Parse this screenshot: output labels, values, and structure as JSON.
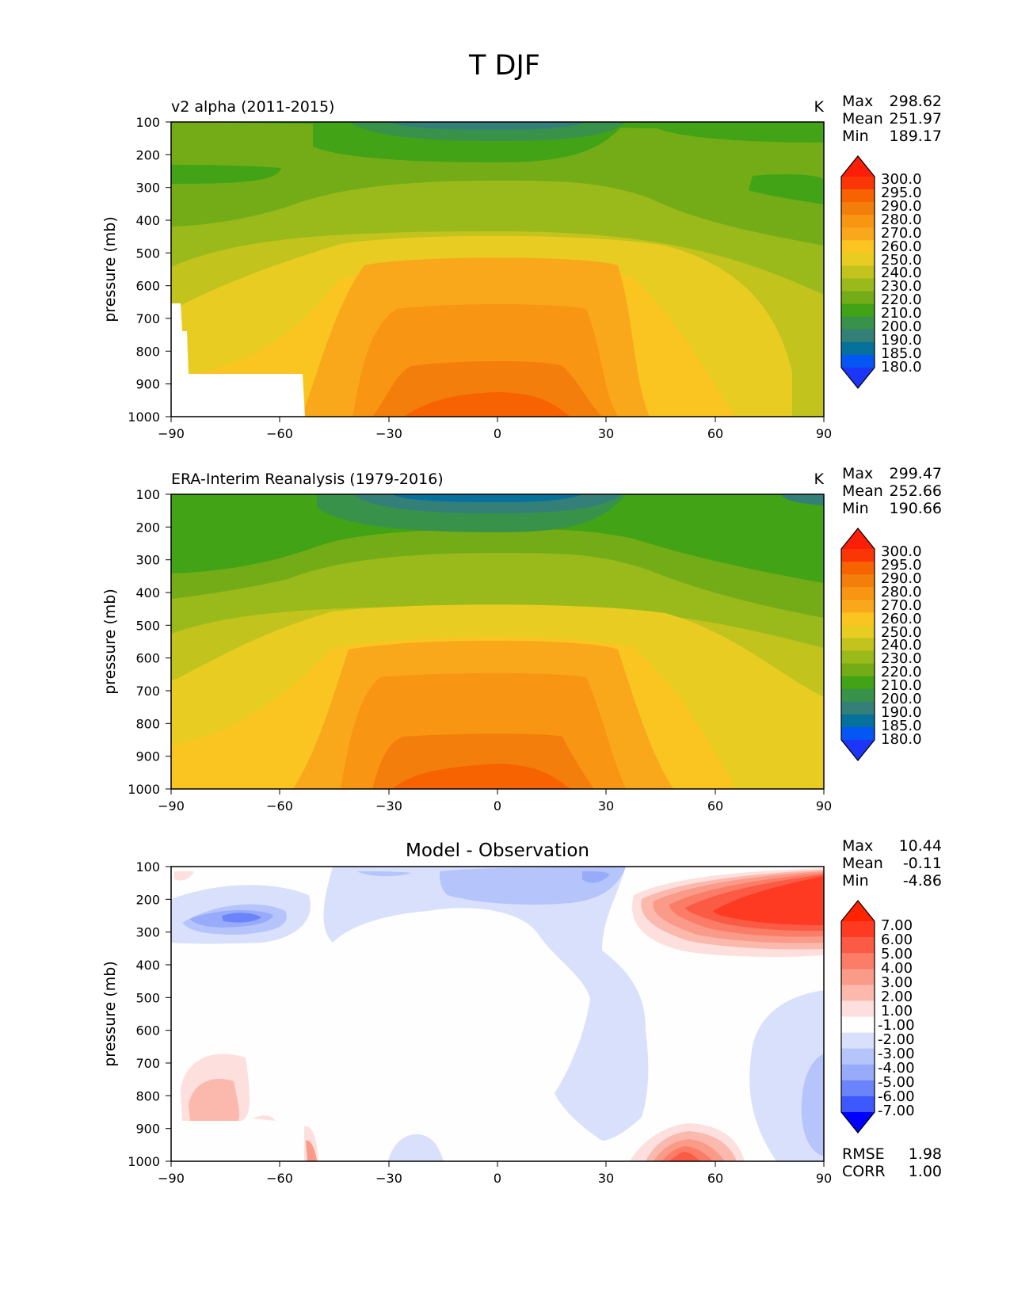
{
  "figure_title": "T DJF",
  "colors": {
    "abs": [
      "#1c35f7",
      "#0457f2",
      "#06719a",
      "#347f78",
      "#389249",
      "#42a316",
      "#74ac17",
      "#9ab91a",
      "#c2c31d",
      "#e8cc22",
      "#fac421",
      "#f9a71b",
      "#f89513",
      "#f47e0b",
      "#f86302",
      "#fa3506",
      "#fc1e06"
    ],
    "diff": [
      "#0000ff",
      "#3d59fd",
      "#6c84fb",
      "#97abfa",
      "#b5c4fa",
      "#d9e0fb",
      "#fefefe",
      "#fde0dd",
      "#fbb8ad",
      "#fa9a88",
      "#fb7c67",
      "#fb5b44",
      "#fe3b22",
      "#ff2300"
    ]
  },
  "chart_data": [
    {
      "type": "heatmap",
      "name": "model",
      "title": "v2 alpha (2011-2015)",
      "units": "K",
      "stats": {
        "max_label": "Max",
        "max": "298.62",
        "mean_label": "Mean",
        "mean": "251.97",
        "min_label": "Min",
        "min": "189.17"
      },
      "xlabel": "",
      "ylabel": "pressure (mb)",
      "xlim": [
        -90,
        90
      ],
      "ylim": [
        1000,
        100
      ],
      "xticks": [
        "−90",
        "−60",
        "−30",
        "0",
        "30",
        "60",
        "90"
      ],
      "yticks": [
        "100",
        "200",
        "300",
        "400",
        "500",
        "600",
        "700",
        "800",
        "900",
        "1000"
      ],
      "levels": [
        180,
        185,
        190,
        200,
        210,
        220,
        230,
        240,
        250,
        260,
        270,
        280,
        290,
        295,
        300
      ],
      "colorbar_labels": [
        "300.0",
        "295.0",
        "290.0",
        "280.0",
        "270.0",
        "260.0",
        "250.0",
        "240.0",
        "230.0",
        "220.0",
        "210.0",
        "200.0",
        "190.0",
        "185.0",
        "180.0"
      ],
      "masked_region": [
        {
          "lat": [
            -90,
            -53
          ],
          "p_min": 870
        },
        {
          "lat": [
            -90,
            -86
          ],
          "p_min": 650
        }
      ]
    },
    {
      "type": "heatmap",
      "name": "obs",
      "title": "ERA-Interim Reanalysis (1979-2016)",
      "units": "K",
      "stats": {
        "max_label": "Max",
        "max": "299.47",
        "mean_label": "Mean",
        "mean": "252.66",
        "min_label": "Min",
        "min": "190.66"
      },
      "xlabel": "",
      "ylabel": "pressure (mb)",
      "xlim": [
        -90,
        90
      ],
      "ylim": [
        1000,
        100
      ],
      "xticks": [
        "−90",
        "−60",
        "−30",
        "0",
        "30",
        "60",
        "90"
      ],
      "yticks": [
        "100",
        "200",
        "300",
        "400",
        "500",
        "600",
        "700",
        "800",
        "900",
        "1000"
      ],
      "levels": [
        180,
        185,
        190,
        200,
        210,
        220,
        230,
        240,
        250,
        260,
        270,
        280,
        290,
        295,
        300
      ],
      "colorbar_labels": [
        "300.0",
        "295.0",
        "290.0",
        "280.0",
        "270.0",
        "260.0",
        "250.0",
        "240.0",
        "230.0",
        "220.0",
        "210.0",
        "200.0",
        "190.0",
        "185.0",
        "180.0"
      ]
    },
    {
      "type": "heatmap",
      "name": "diff",
      "title": "Model - Observation",
      "units": "",
      "stats": {
        "max_label": "Max",
        "max": "10.44",
        "mean_label": "Mean",
        "mean": "-0.11",
        "min_label": "Min",
        "min": "-4.86"
      },
      "metrics": {
        "rmse_label": "RMSE",
        "rmse": "1.98",
        "corr_label": "CORR",
        "corr": "1.00"
      },
      "xlabel": "",
      "ylabel": "pressure (mb)",
      "xlim": [
        -90,
        90
      ],
      "ylim": [
        1000,
        100
      ],
      "xticks": [
        "−90",
        "−60",
        "−30",
        "0",
        "30",
        "60",
        "90"
      ],
      "yticks": [
        "100",
        "200",
        "300",
        "400",
        "500",
        "600",
        "700",
        "800",
        "900",
        "1000"
      ],
      "levels": [
        -8,
        -7,
        -6,
        -5,
        -4,
        -3,
        -2,
        -1,
        1,
        2,
        3,
        4,
        5,
        6,
        7,
        8
      ],
      "colorbar_labels": [
        "7.00",
        "6.00",
        "5.00",
        "4.00",
        "3.00",
        "2.00",
        "1.00",
        "-1.00",
        "-2.00",
        "-3.00",
        "-4.00",
        "-5.00",
        "-6.00",
        "-7.00"
      ]
    }
  ]
}
